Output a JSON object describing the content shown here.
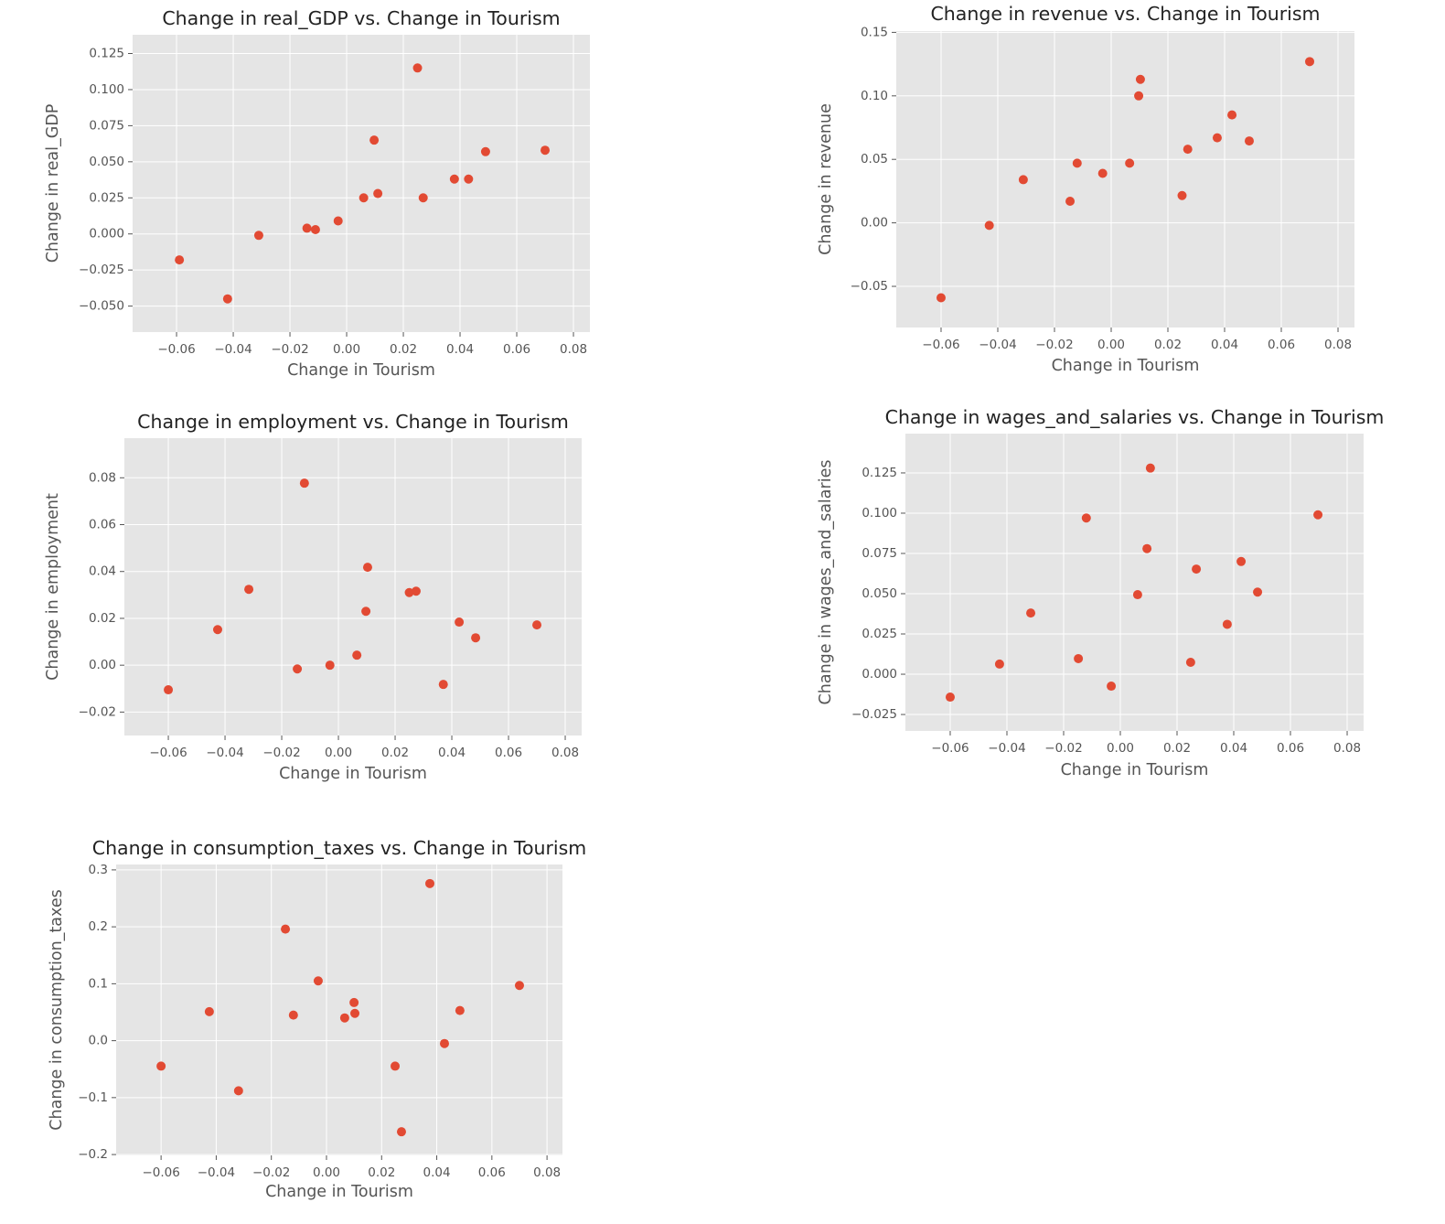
{
  "chart_data": [
    {
      "type": "scatter",
      "title": "Change in real_GDP vs. Change in Tourism",
      "xlabel": "Change in Tourism",
      "ylabel": "Change in real_GDP",
      "color": "#e24a33",
      "grid": true,
      "x": [
        -0.059,
        -0.042,
        -0.031,
        -0.014,
        -0.011,
        -0.003,
        0.006,
        0.0097,
        0.011,
        0.025,
        0.027,
        0.038,
        0.043,
        0.049,
        0.07
      ],
      "values": [
        -0.018,
        -0.045,
        -0.001,
        0.004,
        0.003,
        0.009,
        0.025,
        0.065,
        0.028,
        0.115,
        0.025,
        0.038,
        0.038,
        0.057,
        0.058
      ],
      "xlim": [
        -0.0755,
        0.0858
      ],
      "ylim": [
        -0.068,
        0.138
      ],
      "xticks": [
        {
          "value": -0.06,
          "label": "−0.06"
        },
        {
          "value": -0.04,
          "label": "−0.04"
        },
        {
          "value": -0.02,
          "label": "−0.02"
        },
        {
          "value": 0,
          "label": "0.00"
        },
        0.02,
        0.04,
        0.06,
        0.08
      ],
      "yticks": [
        {
          "value": -0.05,
          "label": "−0.050"
        },
        {
          "value": -0.025,
          "label": "−0.025"
        },
        {
          "value": 0,
          "label": "0.000"
        },
        0.025,
        {
          "value": 0.05,
          "label": "0.050"
        },
        0.075,
        {
          "value": 0.1,
          "label": "0.100"
        },
        0.125
      ]
    },
    {
      "type": "scatter",
      "title": "Change in revenue vs. Change in Tourism",
      "xlabel": "Change in Tourism",
      "ylabel": "Change in revenue",
      "color": "#e24a33",
      "grid": true,
      "x": [
        -0.06,
        -0.043,
        -0.031,
        -0.0145,
        -0.012,
        -0.003,
        0.0065,
        0.0097,
        0.0103,
        0.025,
        0.027,
        0.0374,
        0.0426,
        0.0487,
        0.07
      ],
      "values": [
        -0.059,
        -0.002,
        0.034,
        0.017,
        0.047,
        0.039,
        0.047,
        0.1,
        0.113,
        0.0215,
        0.058,
        0.067,
        0.085,
        0.0645,
        0.127
      ],
      "xlim": [
        -0.0758,
        0.0858
      ],
      "ylim": [
        -0.0824,
        0.151
      ],
      "xticks": [
        {
          "value": -0.06,
          "label": "−0.06"
        },
        {
          "value": -0.04,
          "label": "−0.04"
        },
        {
          "value": -0.02,
          "label": "−0.02"
        },
        {
          "value": 0,
          "label": "0.00"
        },
        0.02,
        0.04,
        0.06,
        0.08
      ],
      "yticks": [
        {
          "value": -0.05,
          "label": "−0.05"
        },
        {
          "value": 0,
          "label": "0.00"
        },
        0.05,
        {
          "value": 0.1,
          "label": "0.10"
        },
        0.15
      ]
    },
    {
      "type": "scatter",
      "title": "Change in employment vs. Change in Tourism",
      "xlabel": "Change in Tourism",
      "ylabel": "Change in employment",
      "color": "#e24a33",
      "grid": true,
      "x": [
        -0.06,
        -0.0426,
        -0.0316,
        -0.0145,
        -0.012,
        -0.003,
        0.0065,
        0.0097,
        0.0103,
        0.025,
        0.0274,
        0.037,
        0.0426,
        0.0484,
        0.07
      ],
      "values": [
        -0.0105,
        0.0152,
        0.0324,
        -0.0016,
        0.0777,
        0.0,
        0.0043,
        0.023,
        0.0418,
        0.031,
        0.0316,
        -0.0082,
        0.0184,
        0.0117,
        0.0172
      ],
      "xlim": [
        -0.0755,
        0.0858
      ],
      "ylim": [
        -0.03,
        0.0969
      ],
      "xticks": [
        {
          "value": -0.06,
          "label": "−0.06"
        },
        {
          "value": -0.04,
          "label": "−0.04"
        },
        {
          "value": -0.02,
          "label": "−0.02"
        },
        {
          "value": 0,
          "label": "0.00"
        },
        0.02,
        0.04,
        0.06,
        0.08
      ],
      "yticks": [
        {
          "value": -0.02,
          "label": "−0.02"
        },
        {
          "value": 0,
          "label": "0.00"
        },
        0.02,
        0.04,
        0.06,
        0.08
      ]
    },
    {
      "type": "scatter",
      "title": "Change in wages_and_salaries vs. Change in Tourism",
      "xlabel": "Change in Tourism",
      "ylabel": "Change in wages_and_salaries",
      "color": "#e24a33",
      "grid": true,
      "x": [
        -0.06,
        -0.0426,
        -0.0316,
        -0.0148,
        -0.012,
        -0.0032,
        0.0061,
        0.0094,
        0.0106,
        0.0248,
        0.0268,
        0.0377,
        0.0426,
        0.0484,
        0.0697
      ],
      "values": [
        -0.0142,
        0.0063,
        0.038,
        0.0097,
        0.097,
        -0.0074,
        0.0494,
        0.078,
        0.128,
        0.0074,
        0.0653,
        0.031,
        0.07,
        0.051,
        0.099
      ],
      "xlim": [
        -0.0758,
        0.0858
      ],
      "ylim": [
        -0.0352,
        0.1494
      ],
      "xticks": [
        {
          "value": -0.06,
          "label": "−0.06"
        },
        {
          "value": -0.04,
          "label": "−0.04"
        },
        {
          "value": -0.02,
          "label": "−0.02"
        },
        {
          "value": 0,
          "label": "0.00"
        },
        0.02,
        0.04,
        0.06,
        0.08
      ],
      "yticks": [
        {
          "value": -0.025,
          "label": "−0.025"
        },
        {
          "value": 0,
          "label": "0.000"
        },
        0.025,
        {
          "value": 0.05,
          "label": "0.050"
        },
        0.075,
        {
          "value": 0.1,
          "label": "0.100"
        },
        0.125
      ]
    },
    {
      "type": "scatter",
      "title": "Change in consumption_taxes vs. Change in Tourism",
      "xlabel": "Change in Tourism",
      "ylabel": "Change in consumption_taxes",
      "color": "#e24a33",
      "grid": true,
      "x": [
        -0.06,
        -0.0425,
        -0.0319,
        -0.0149,
        -0.012,
        -0.003,
        0.0066,
        0.01,
        0.0103,
        0.0249,
        0.0272,
        0.0375,
        0.0428,
        0.0484,
        0.07
      ],
      "values": [
        -0.0447,
        0.051,
        -0.088,
        0.196,
        0.045,
        0.105,
        0.04,
        0.067,
        0.048,
        -0.0447,
        -0.16,
        0.276,
        -0.005,
        0.053,
        0.097
      ],
      "xlim": [
        -0.0763,
        0.0856
      ],
      "ylim": [
        -0.2015,
        0.3095
      ],
      "xticks": [
        {
          "value": -0.06,
          "label": "−0.06"
        },
        {
          "value": -0.04,
          "label": "−0.04"
        },
        {
          "value": -0.02,
          "label": "−0.02"
        },
        {
          "value": 0,
          "label": "0.00"
        },
        0.02,
        0.04,
        0.06,
        0.08
      ],
      "yticks": [
        {
          "value": -0.2,
          "label": "−0.2"
        },
        {
          "value": -0.1,
          "label": "−0.1"
        },
        {
          "value": 0,
          "label": "0.0"
        },
        0.1,
        0.2,
        0.3
      ]
    }
  ]
}
